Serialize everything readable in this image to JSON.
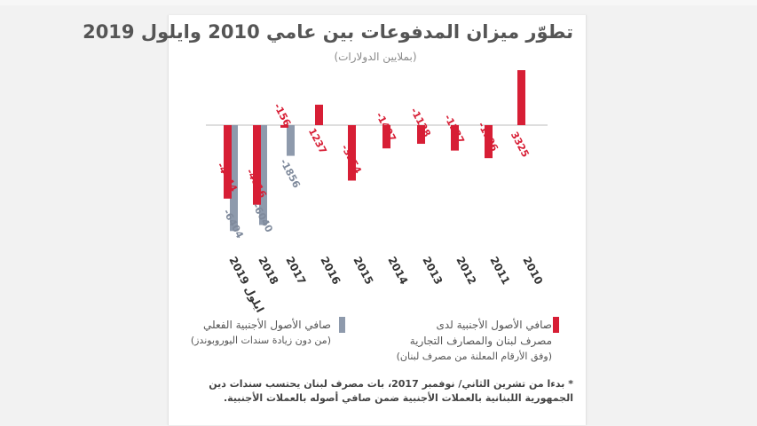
{
  "chart_data": {
    "type": "bar",
    "title": "تطوّر ميزان المدفوعات بين عامي 2010 وايلول 2019",
    "subtitle": "(بملايين الدولارات)",
    "categories": [
      "ايلول 2019",
      "2018",
      "2017",
      "2016",
      "2015",
      "2014",
      "2013",
      "2012",
      "2011",
      "2010"
    ],
    "series": [
      {
        "name": "صافي الأصول الأجنبية لدى مصرف لبنان والمصارف التجارية",
        "color": "#d71e35",
        "values": [
          -4444,
          -4816,
          -156,
          1237,
          -3354,
          -1407,
          -1128,
          -1537,
          -1996,
          3325
        ],
        "labels": [
          "-4444",
          "-4816",
          "-156",
          "1237",
          "-3354",
          "-1407",
          "-1128",
          "-1537",
          "-1996",
          "3325"
        ]
      },
      {
        "name": "صافي الأصول الأجنبية الفعلي",
        "color": "#8e9aac",
        "values": [
          -6404,
          -6040,
          -1856,
          null,
          null,
          null,
          null,
          null,
          null,
          null
        ],
        "labels": [
          "-6404",
          "-6040",
          "-1856",
          "",
          "",
          "",
          "",
          "",
          "",
          ""
        ]
      }
    ],
    "ylim": [
      -7000,
      3500
    ],
    "grid": false,
    "legend_position": "bottom"
  },
  "legend": {
    "red": {
      "line1": "صافي الأصول الأجنبية لدى",
      "line2": "مصرف لبنان والمصارف التجارية",
      "line3": "(وفق الأرقام المعلنة من مصرف لبنان)",
      "color": "#d71e35"
    },
    "gray": {
      "line1": "صافي الأصول الأجنبية الفعلي",
      "line2": "(من دون زيادة سندات اليوروبوندز)",
      "color": "#8e9aac"
    }
  },
  "note": {
    "line1": "* بدءا من تشرين الثاني/ نوفمبر 2017، بات مصرف لبنان يحتسب سندات دين",
    "line2": "الجمهورية اللبنانية بالعملات الأجنبية ضمن صافي أصوله بالعملات الأجنبية."
  }
}
